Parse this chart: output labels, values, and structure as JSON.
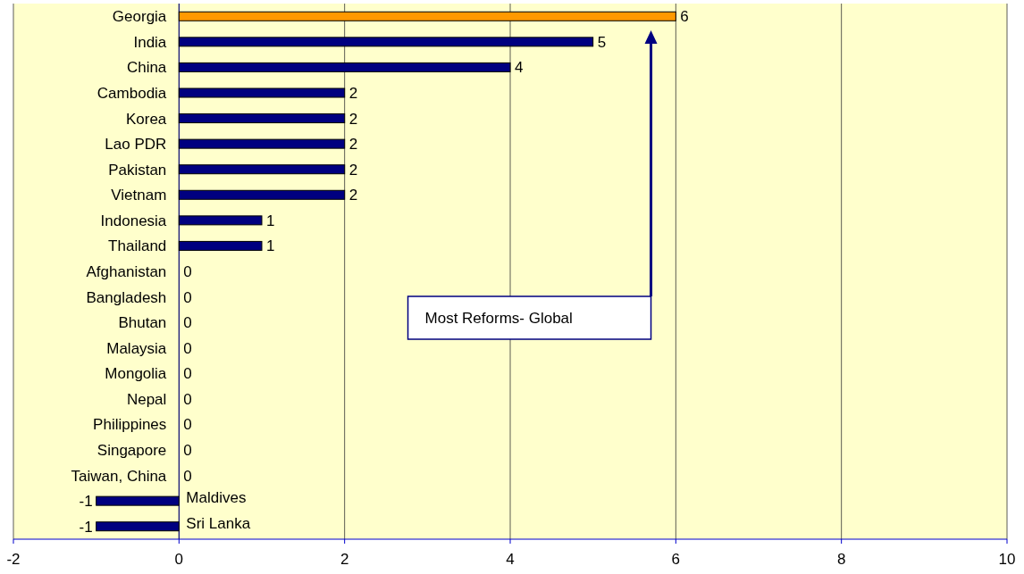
{
  "chart_data": {
    "type": "bar",
    "orientation": "horizontal",
    "categories": [
      "Georgia",
      "India",
      "China",
      "Cambodia",
      "Korea",
      "Lao PDR",
      "Pakistan",
      "Vietnam",
      "Indonesia",
      "Thailand",
      "Afghanistan",
      "Bangladesh",
      "Bhutan",
      "Malaysia",
      "Mongolia",
      "Nepal",
      "Philippines",
      "Singapore",
      "Taiwan, China",
      "Maldives",
      "Sri Lanka"
    ],
    "values": [
      6,
      5,
      4,
      2,
      2,
      2,
      2,
      2,
      1,
      1,
      0,
      0,
      0,
      0,
      0,
      0,
      0,
      0,
      0,
      -1,
      -1
    ],
    "colors": [
      "#ff9900",
      "#000080",
      "#000080",
      "#000080",
      "#000080",
      "#000080",
      "#000080",
      "#000080",
      "#000080",
      "#000080",
      "#000080",
      "#000080",
      "#000080",
      "#000080",
      "#000080",
      "#000080",
      "#000080",
      "#000080",
      "#000080",
      "#000080",
      "#000080"
    ],
    "xlim": [
      -2,
      10
    ],
    "xticks": [
      -2,
      0,
      2,
      4,
      6,
      8,
      10
    ],
    "grid": "x",
    "data_labels": true,
    "annotations": [
      "Most Reforms- Global"
    ]
  }
}
